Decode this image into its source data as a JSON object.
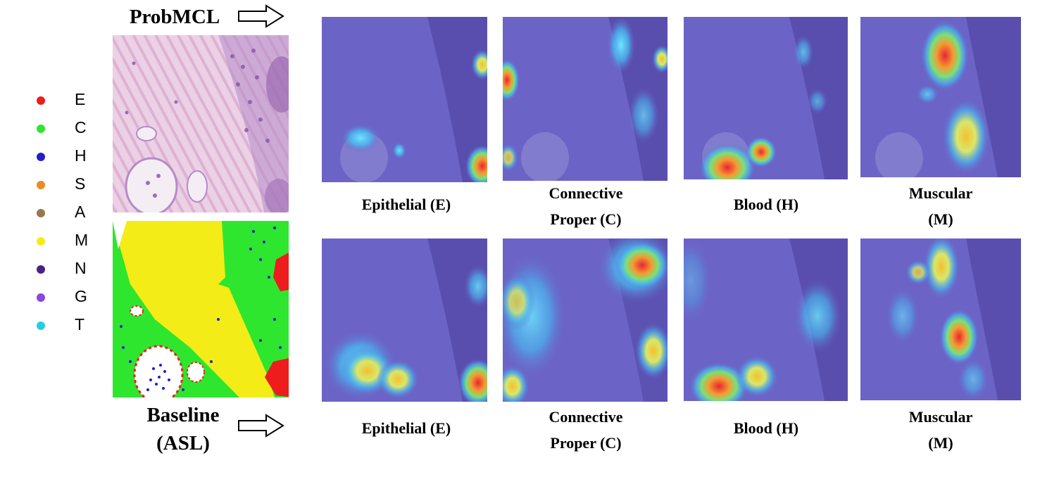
{
  "legend": [
    {
      "letter": "E",
      "color": "#ee1c1c"
    },
    {
      "letter": "C",
      "color": "#2ee62e"
    },
    {
      "letter": "H",
      "color": "#1f1fcc"
    },
    {
      "letter": "S",
      "color": "#ee8a22"
    },
    {
      "letter": "A",
      "color": "#9b7450"
    },
    {
      "letter": "M",
      "color": "#f4ec16"
    },
    {
      "letter": "N",
      "color": "#4b2283"
    },
    {
      "letter": "G",
      "color": "#8a46de"
    },
    {
      "letter": "T",
      "color": "#25cde4"
    }
  ],
  "top_method": "ProbMCL",
  "bottom_method": {
    "line1": "Baseline",
    "line2": "(ASL)"
  },
  "captions_top": [
    {
      "line1": "Epithelial (E)",
      "line2": ""
    },
    {
      "line1": "Connective",
      "line2": "Proper (C)"
    },
    {
      "line1": "Blood (H)",
      "line2": ""
    },
    {
      "line1": "Muscular",
      "line2": "(M)"
    }
  ],
  "captions_bottom": [
    {
      "line1": "Epithelial (E)",
      "line2": ""
    },
    {
      "line1": "Connective",
      "line2": "Proper (C)"
    },
    {
      "line1": "Blood (H)",
      "line2": ""
    },
    {
      "line1": "Muscular",
      "line2": "(M)"
    }
  ],
  "colors": {
    "heatmap_base": "#6b64c6",
    "tissue_pink": "#e8c8e0",
    "mask_green": "#2ee62e",
    "mask_yellow": "#f4ec16",
    "mask_red": "#ee1c1c"
  }
}
